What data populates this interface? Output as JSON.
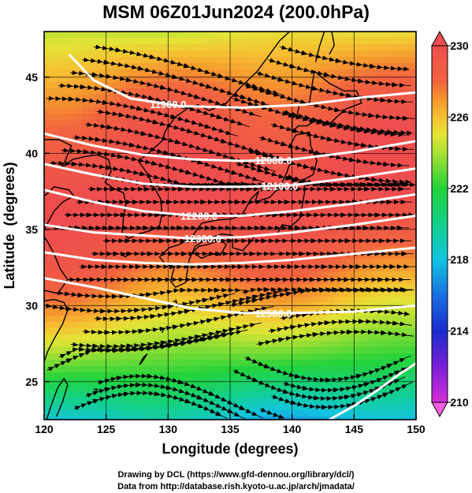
{
  "title": "MSM 06Z01Jun2024 (200.0hPa)",
  "xlabel": "Longitude (degrees)",
  "ylabel": "Latitude  (degrees)",
  "credits": [
    "Drawing by DCL (https://www.gfd-dennou.org/library/dcl/)",
    "Data from http://database.rish.kyoto-u.ac.jp/arch/jmadata/"
  ],
  "chart_data": {
    "type": "heatmap",
    "x_range": [
      120,
      150
    ],
    "y_range": [
      22.5,
      48
    ],
    "x_ticks": [
      120,
      125,
      130,
      135,
      140,
      145,
      150
    ],
    "y_ticks": [
      25,
      30,
      35,
      40,
      45
    ],
    "colorbar": {
      "range": [
        210,
        230
      ],
      "ticks": [
        210,
        214,
        218,
        222,
        226,
        230
      ],
      "stops": [
        {
          "value": 210,
          "color": "#d62fd8"
        },
        {
          "value": 212,
          "color": "#7a1fd8"
        },
        {
          "value": 214,
          "color": "#1a2bcf"
        },
        {
          "value": 216,
          "color": "#1a6fe0"
        },
        {
          "value": 218,
          "color": "#11c4e0"
        },
        {
          "value": 220,
          "color": "#13d08a"
        },
        {
          "value": 222,
          "color": "#24d33a"
        },
        {
          "value": 224,
          "color": "#a9e033"
        },
        {
          "value": 225,
          "color": "#e3e436"
        },
        {
          "value": 226,
          "color": "#f6c032"
        },
        {
          "value": 227,
          "color": "#f5962e"
        },
        {
          "value": 228,
          "color": "#f26440"
        },
        {
          "value": 230,
          "color": "#ee4d4d"
        }
      ]
    },
    "contours": [
      {
        "label": "11900.0",
        "label_lon": 130.0,
        "points": [
          [
            122,
            46.5
          ],
          [
            124,
            44.8
          ],
          [
            127,
            43.6
          ],
          [
            131,
            43.1
          ],
          [
            136,
            43.0
          ],
          [
            141,
            43.2
          ],
          [
            146,
            43.7
          ],
          [
            150,
            44.0
          ]
        ]
      },
      {
        "label": "12000.0",
        "label_lon": 138.5,
        "points": [
          [
            120,
            41.3
          ],
          [
            124,
            40.5
          ],
          [
            128,
            39.9
          ],
          [
            132,
            39.6
          ],
          [
            136,
            39.5
          ],
          [
            140,
            39.6
          ],
          [
            145,
            40.1
          ],
          [
            150,
            40.8
          ]
        ]
      },
      {
        "label": "12100.0",
        "label_lon": 139.0,
        "points": [
          [
            120,
            39.3
          ],
          [
            124,
            38.6
          ],
          [
            128,
            38.0
          ],
          [
            132,
            37.8
          ],
          [
            136,
            37.8
          ],
          [
            140,
            37.9
          ],
          [
            145,
            38.4
          ],
          [
            150,
            39.0
          ]
        ]
      },
      {
        "label": "12200.0",
        "label_lon": 132.5,
        "points": [
          [
            120,
            37.6
          ],
          [
            124,
            36.8
          ],
          [
            128,
            36.2
          ],
          [
            132,
            35.9
          ],
          [
            136,
            35.9
          ],
          [
            140,
            36.2
          ],
          [
            145,
            36.7
          ],
          [
            150,
            37.3
          ]
        ]
      },
      {
        "label": "12300.0",
        "label_lon": 132.8,
        "points": [
          [
            120,
            35.3
          ],
          [
            124,
            34.8
          ],
          [
            128,
            34.6
          ],
          [
            132,
            34.4
          ],
          [
            136,
            34.5
          ],
          [
            140,
            34.8
          ],
          [
            145,
            35.3
          ],
          [
            150,
            35.9
          ]
        ]
      },
      {
        "label": "",
        "label_lon": 0,
        "points": [
          [
            120,
            33.5
          ],
          [
            124,
            33.0
          ],
          [
            128,
            32.8
          ],
          [
            132,
            32.7
          ],
          [
            136,
            32.8
          ],
          [
            140,
            33.0
          ],
          [
            145,
            33.4
          ],
          [
            150,
            33.8
          ]
        ]
      },
      {
        "label": "12500.0",
        "label_lon": 138.5,
        "points": [
          [
            120,
            31.8
          ],
          [
            124,
            31.2
          ],
          [
            128,
            30.5
          ],
          [
            132,
            29.8
          ],
          [
            136,
            29.5
          ],
          [
            140,
            29.5
          ],
          [
            145,
            29.6
          ],
          [
            150,
            30.0
          ]
        ]
      },
      {
        "label": "",
        "label_lon": 0,
        "points": [
          [
            143,
            22.5
          ],
          [
            145,
            23.4
          ],
          [
            147,
            24.5
          ],
          [
            148.5,
            25.4
          ],
          [
            150,
            26.2
          ]
        ]
      }
    ]
  },
  "colors": {
    "contour": "#ffffff",
    "streamline": "#000000",
    "coastline": "#000000",
    "grid": "#000000"
  }
}
